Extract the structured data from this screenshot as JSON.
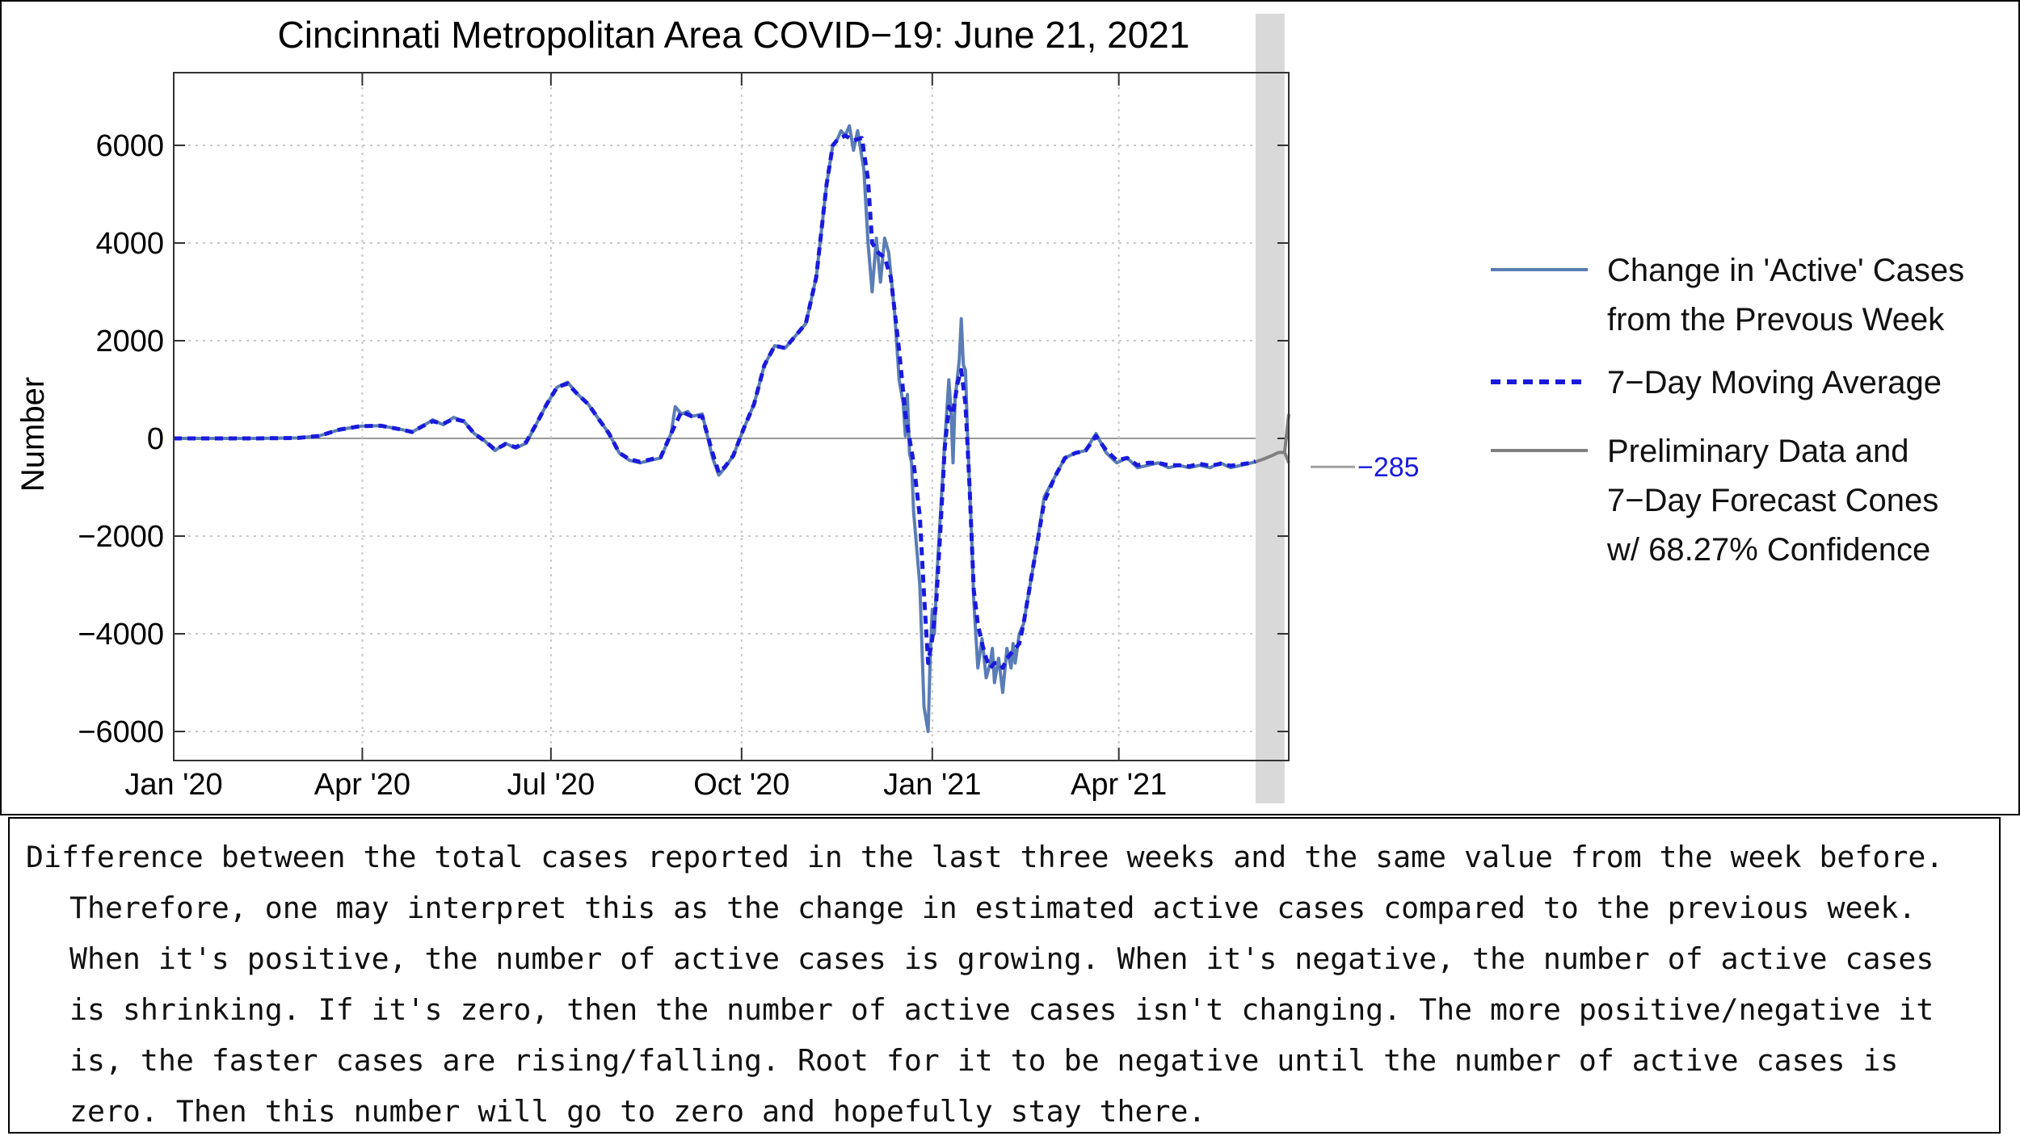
{
  "caption": {
    "text": "Difference between the total cases reported in the last three weeks and the same value from the week before. Therefore, one may interpret this as the change in estimated active cases compared to the previous week. When it's positive, the number of active cases is growing. When it's negative, the number of active cases is shrinking. If it's zero, then the number of active cases isn't changing. The more positive/negative it is, the faster cases are rising/falling. Root for it to be negative until the number of active cases is zero. Then this number will go to zero and hopefully stay there."
  },
  "chart_data": {
    "type": "line",
    "title": "Cincinnati Metropolitan Area COVID−19: June 21, 2021",
    "xlabel": "",
    "ylabel": "Number",
    "x_unit": "days since Jan 1, 2020",
    "xlim": [
      0,
      538
    ],
    "ylim": [
      -6500,
      7500
    ],
    "grid": true,
    "y_ticks": [
      {
        "value": -6000,
        "label": "−6000"
      },
      {
        "value": -4000,
        "label": "−4000"
      },
      {
        "value": -2000,
        "label": "−2000"
      },
      {
        "value": 0,
        "label": "0"
      },
      {
        "value": 2000,
        "label": "2000"
      },
      {
        "value": 4000,
        "label": "4000"
      },
      {
        "value": 6000,
        "label": "6000"
      }
    ],
    "x_ticks": [
      {
        "value": 0,
        "label": "Jan '20"
      },
      {
        "value": 91,
        "label": "Apr '20"
      },
      {
        "value": 182,
        "label": "Jul '20"
      },
      {
        "value": 274,
        "label": "Oct '20"
      },
      {
        "value": 366,
        "label": "Jan '21"
      },
      {
        "value": 456,
        "label": "Apr '21"
      }
    ],
    "preliminary_region": {
      "start": 522,
      "end": 536
    },
    "annotation": {
      "label": "−285",
      "value": -285
    },
    "series": [
      {
        "name": "Change in 'Active' Cases from the Prevous Week",
        "color": "#5a7db5",
        "style": "solid",
        "x": [
          0,
          20,
          40,
          60,
          70,
          80,
          90,
          100,
          110,
          115,
          120,
          125,
          130,
          135,
          140,
          145,
          150,
          155,
          160,
          165,
          170,
          175,
          180,
          185,
          190,
          195,
          200,
          205,
          210,
          215,
          220,
          225,
          230,
          235,
          240,
          242,
          245,
          248,
          250,
          255,
          260,
          263,
          266,
          270,
          275,
          280,
          285,
          290,
          295,
          300,
          305,
          310,
          315,
          318,
          320,
          322,
          324,
          326,
          328,
          330,
          333,
          335,
          337,
          339,
          341,
          343,
          345,
          348,
          350,
          352,
          353,
          354,
          355,
          356,
          357,
          360,
          362,
          364,
          365,
          366,
          367,
          368,
          370,
          372,
          374,
          375,
          376,
          377,
          378,
          379,
          380,
          381,
          382,
          383,
          384,
          385,
          386,
          388,
          390,
          392,
          394,
          395,
          396,
          398,
          400,
          402,
          404,
          405,
          406,
          408,
          410,
          412,
          414,
          416,
          420,
          425,
          430,
          435,
          440,
          445,
          450,
          455,
          460,
          465,
          470,
          475,
          480,
          485,
          490,
          495,
          500,
          505,
          510,
          515,
          520,
          522
        ],
        "y": [
          0,
          0,
          0,
          10,
          50,
          180,
          250,
          260,
          180,
          130,
          250,
          380,
          280,
          430,
          350,
          100,
          -50,
          -250,
          -100,
          -200,
          -100,
          300,
          700,
          1050,
          1150,
          900,
          700,
          400,
          100,
          -300,
          -450,
          -500,
          -450,
          -400,
          100,
          650,
          500,
          550,
          450,
          500,
          -400,
          -750,
          -600,
          -350,
          200,
          700,
          1500,
          1900,
          1850,
          2100,
          2350,
          3300,
          5200,
          6000,
          6100,
          6300,
          6200,
          6400,
          5900,
          6300,
          5500,
          4000,
          3000,
          4100,
          3200,
          4100,
          3800,
          2500,
          1200,
          700,
          50,
          900,
          -300,
          -500,
          -1500,
          -3000,
          -5500,
          -6000,
          -4500,
          -3500,
          -4000,
          -3000,
          -1500,
          -100,
          1200,
          600,
          -500,
          800,
          1200,
          1600,
          2450,
          1500,
          1400,
          100,
          -1000,
          -2000,
          -3300,
          -4700,
          -4100,
          -4900,
          -4600,
          -4300,
          -5000,
          -4500,
          -5200,
          -4300,
          -4700,
          -4200,
          -4600,
          -4000,
          -3800,
          -3300,
          -2800,
          -2300,
          -1200,
          -800,
          -400,
          -300,
          -250,
          100,
          -300,
          -500,
          -400,
          -600,
          -550,
          -500,
          -600,
          -550,
          -600,
          -550,
          -600,
          -500,
          -600,
          -550,
          -500,
          -480
        ]
      },
      {
        "name": "7−Day Moving Average",
        "color": "#1a1adc",
        "style": "dashed",
        "x": [
          0,
          20,
          40,
          60,
          70,
          80,
          90,
          100,
          110,
          115,
          120,
          125,
          130,
          135,
          140,
          145,
          150,
          155,
          160,
          165,
          170,
          175,
          180,
          185,
          190,
          195,
          200,
          205,
          210,
          215,
          220,
          225,
          230,
          235,
          240,
          245,
          250,
          255,
          260,
          263,
          266,
          270,
          275,
          280,
          285,
          290,
          295,
          300,
          305,
          310,
          315,
          318,
          320,
          324,
          328,
          332,
          335,
          337,
          340,
          343,
          346,
          350,
          353,
          357,
          360,
          362,
          364,
          366,
          368,
          370,
          372,
          374,
          376,
          378,
          380,
          382,
          384,
          386,
          388,
          390,
          392,
          394,
          396,
          398,
          400,
          402,
          404,
          406,
          408,
          410,
          412,
          414,
          416,
          420,
          425,
          430,
          435,
          440,
          445,
          450,
          455,
          460,
          465,
          470,
          475,
          480,
          485,
          490,
          495,
          500,
          505,
          510,
          515,
          520,
          522
        ],
        "y": [
          0,
          0,
          0,
          10,
          50,
          180,
          250,
          260,
          180,
          130,
          250,
          350,
          300,
          400,
          350,
          100,
          -50,
          -230,
          -120,
          -180,
          -80,
          300,
          700,
          1050,
          1120,
          900,
          700,
          400,
          100,
          -300,
          -430,
          -480,
          -430,
          -380,
          100,
          550,
          450,
          450,
          -300,
          -700,
          -580,
          -350,
          200,
          700,
          1500,
          1900,
          1850,
          2100,
          2350,
          3300,
          5200,
          6000,
          6100,
          6200,
          6100,
          6150,
          5300,
          4000,
          3800,
          3700,
          3300,
          1800,
          500,
          -500,
          -1600,
          -3200,
          -4600,
          -4100,
          -3300,
          -1800,
          -200,
          650,
          500,
          1100,
          1400,
          700,
          -1000,
          -3100,
          -3800,
          -4200,
          -4500,
          -4700,
          -4600,
          -4600,
          -4700,
          -4500,
          -4400,
          -4300,
          -4200,
          -3800,
          -3300,
          -2800,
          -2300,
          -1300,
          -800,
          -400,
          -300,
          -250,
          50,
          -250,
          -450,
          -400,
          -550,
          -500,
          -500,
          -550,
          -550,
          -570,
          -520,
          -560,
          -520,
          -560,
          -530,
          -500,
          -470
        ]
      },
      {
        "name": "Preliminary Data and 7−Day Forecast Cones w/ 68.27% Confidence",
        "color": "#808080",
        "style": "solid",
        "x": [
          522,
          526,
          530,
          533,
          536
        ],
        "y": [
          -480,
          -420,
          -350,
          -290,
          -285
        ],
        "upper_x": [
          536,
          538
        ],
        "upper_y": [
          -285,
          500
        ],
        "lower_x": [
          536,
          538
        ],
        "lower_y": [
          -285,
          -500
        ]
      }
    ],
    "legend": [
      {
        "label_lines": [
          "Change in 'Active' Cases",
          "from the Prevous Week"
        ],
        "color": "#5a7db5",
        "style": "solid"
      },
      {
        "label_lines": [
          "7−Day Moving Average"
        ],
        "color": "#1a1adc",
        "style": "dashed"
      },
      {
        "label_lines": [
          "Preliminary Data and",
          "7−Day Forecast Cones",
          "w/ 68.27% Confidence"
        ],
        "color": "#808080",
        "style": "solid"
      }
    ]
  }
}
